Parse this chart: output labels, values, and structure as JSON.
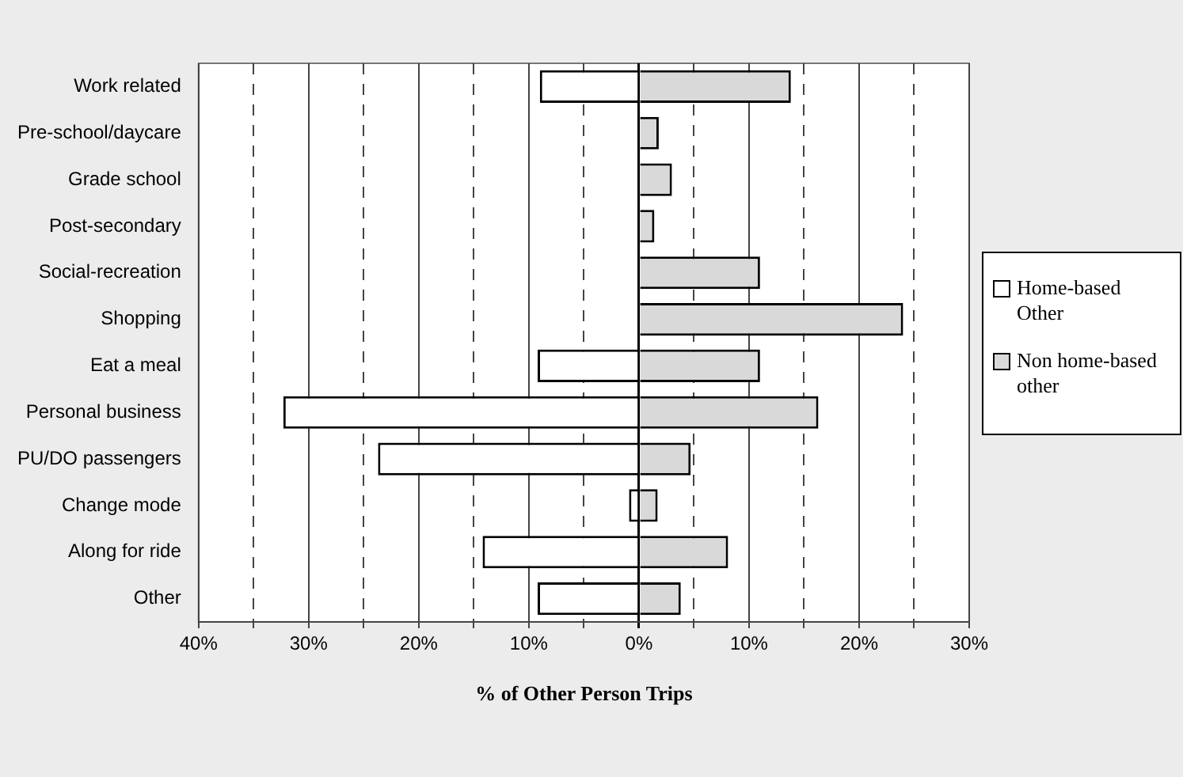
{
  "chart_data": {
    "type": "bar",
    "orientation": "horizontal",
    "stacked": true,
    "xlabel": "% of Other Person Trips",
    "categories": [
      "Work related",
      "Pre-school/daycare",
      "Grade school",
      "Post-secondary",
      "Social-recreation",
      "Shopping",
      "Eat a meal",
      "Personal business",
      "PU/DO passengers",
      "Change mode",
      "Along for ride",
      "Other"
    ],
    "series": [
      {
        "name": "Home-based Other",
        "color": "#ffffff",
        "values": [
          -9.0,
          null,
          null,
          null,
          null,
          null,
          -9.2,
          -32.3,
          -23.7,
          -0.9,
          -14.2,
          -9.2
        ]
      },
      {
        "name": "Non home-based other",
        "color": "#d9d9d9",
        "values": [
          13.8,
          1.8,
          3.0,
          1.4,
          11.0,
          24.0,
          11.0,
          16.3,
          4.7,
          1.7,
          8.1,
          3.8
        ]
      }
    ],
    "xlim": [
      -40,
      30
    ],
    "xticks": [
      {
        "value": -40,
        "label": "40%"
      },
      {
        "value": -35,
        "label": null
      },
      {
        "value": -30,
        "label": "30%"
      },
      {
        "value": -25,
        "label": null
      },
      {
        "value": -20,
        "label": "20%"
      },
      {
        "value": -15,
        "label": null
      },
      {
        "value": -10,
        "label": "10%"
      },
      {
        "value": -5,
        "label": null
      },
      {
        "value": 0,
        "label": "0%"
      },
      {
        "value": 5,
        "label": null
      },
      {
        "value": 10,
        "label": "10%"
      },
      {
        "value": 15,
        "label": null
      },
      {
        "value": 20,
        "label": "20%"
      },
      {
        "value": 25,
        "label": null
      },
      {
        "value": 30,
        "label": "30%"
      }
    ],
    "grid": "x",
    "legend": "right"
  }
}
